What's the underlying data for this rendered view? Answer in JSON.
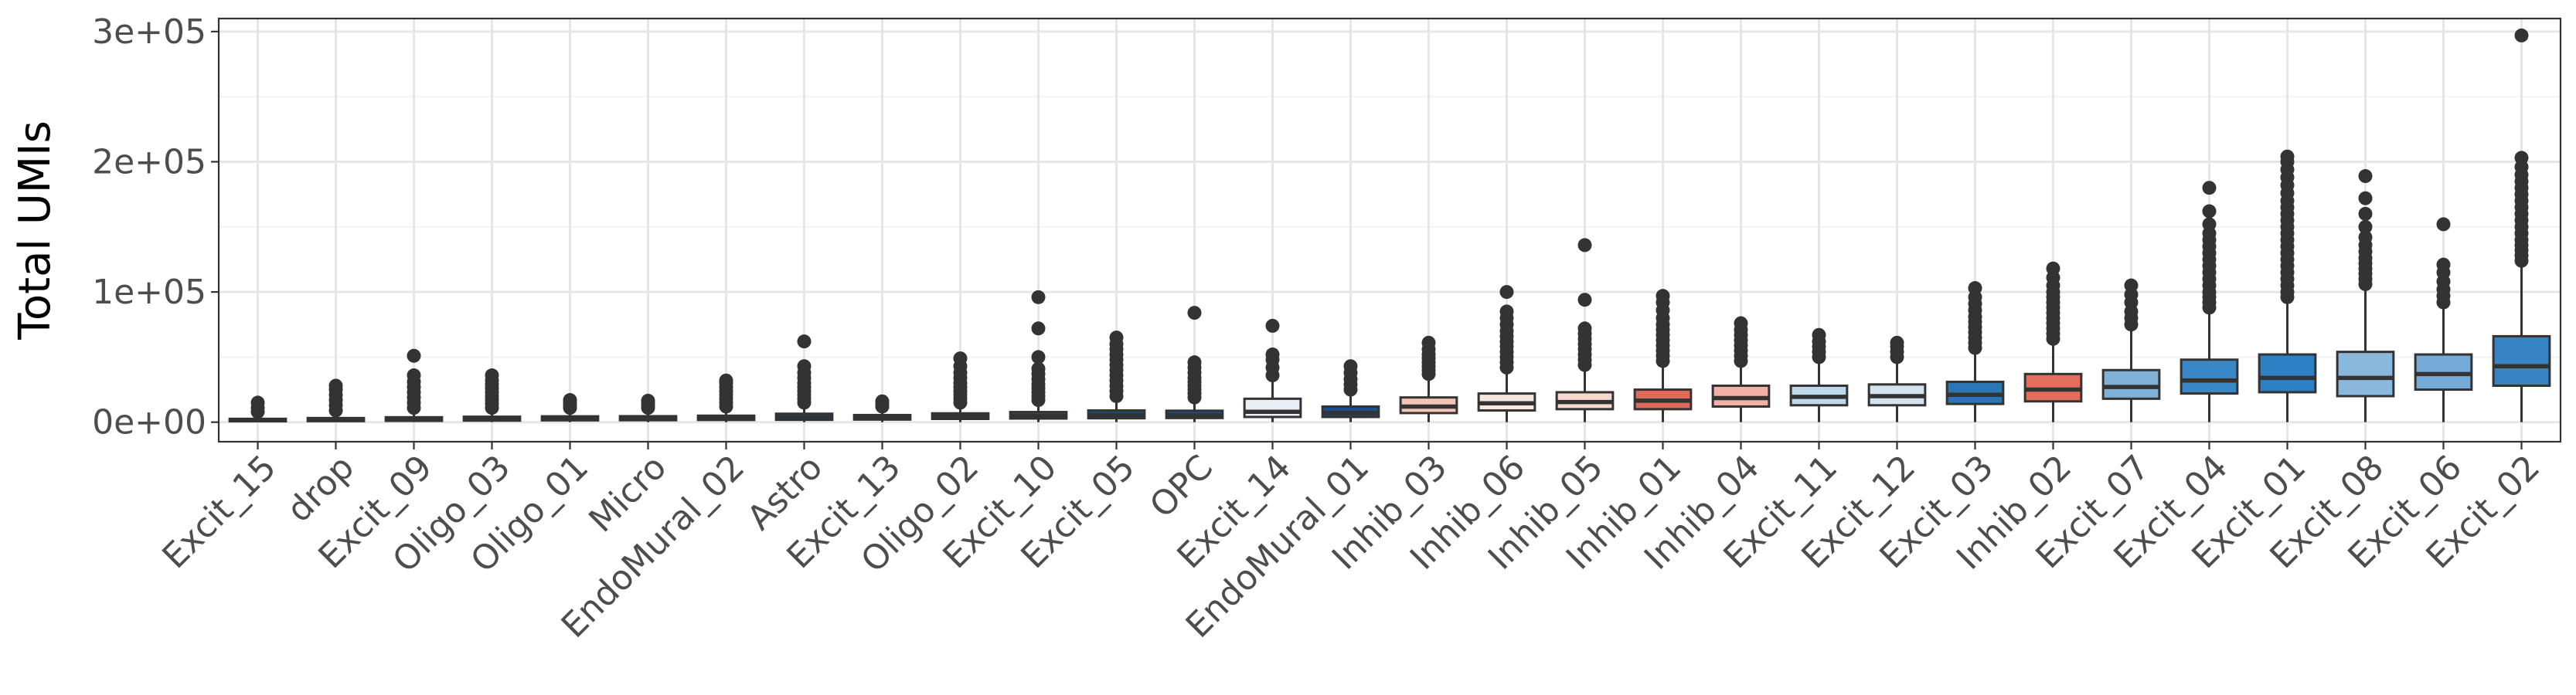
{
  "chart_data": {
    "type": "box",
    "title": "",
    "xlabel": "",
    "ylabel": "Total UMIs",
    "ylim": [
      -15000,
      310000
    ],
    "yticks": [
      0,
      100000,
      200000,
      300000
    ],
    "ytick_labels": [
      "0e+00",
      "1e+05",
      "2e+05",
      "3e+05"
    ],
    "grid": true,
    "legend": "none",
    "categories": [
      "Excit_15",
      "drop",
      "Excit_09",
      "Oligo_03",
      "Oligo_01",
      "Micro",
      "EndoMural_02",
      "Astro",
      "Excit_13",
      "Oligo_02",
      "Excit_10",
      "Excit_05",
      "OPC",
      "Excit_14",
      "EndoMural_01",
      "Inhib_03",
      "Inhib_06",
      "Inhib_05",
      "Inhib_01",
      "Inhib_04",
      "Excit_11",
      "Excit_12",
      "Excit_03",
      "Inhib_02",
      "Excit_07",
      "Excit_04",
      "Excit_01",
      "Excit_08",
      "Excit_06",
      "Excit_02"
    ],
    "boxes": [
      {
        "category": "Excit_15",
        "min": 0,
        "q1": 700,
        "median": 1500,
        "q3": 2600,
        "max": 6000,
        "fill": "#1a4f8b",
        "outliers": [
          8000,
          11000,
          15000
        ]
      },
      {
        "category": "drop",
        "min": 0,
        "q1": 800,
        "median": 1800,
        "q3": 3200,
        "max": 7000,
        "fill": "#1a4f8b",
        "outliers": [
          9000,
          13000,
          17000,
          21000,
          25000,
          28000
        ]
      },
      {
        "category": "Excit_09",
        "min": 0,
        "q1": 1000,
        "median": 2200,
        "q3": 3800,
        "max": 8500,
        "fill": "#1a4f8b",
        "outliers": [
          11000,
          15000,
          19000,
          23000,
          27000,
          31000,
          36000,
          51000
        ]
      },
      {
        "category": "Oligo_03",
        "min": 0,
        "q1": 1200,
        "median": 2500,
        "q3": 4200,
        "max": 8500,
        "fill": "#1a4f8b",
        "outliers": [
          11000,
          14000,
          17000,
          20000,
          23000,
          26000,
          29000,
          32000,
          36000
        ]
      },
      {
        "category": "Oligo_01",
        "min": 0,
        "q1": 1400,
        "median": 2700,
        "q3": 4500,
        "max": 9000,
        "fill": "#1a4f8b",
        "outliers": [
          11000,
          13000,
          15000,
          17000
        ]
      },
      {
        "category": "Micro",
        "min": 0,
        "q1": 1500,
        "median": 2800,
        "q3": 4600,
        "max": 9000,
        "fill": "#1a4f8b",
        "outliers": [
          11000,
          13000,
          15000,
          16500
        ]
      },
      {
        "category": "EndoMural_02",
        "min": 0,
        "q1": 1700,
        "median": 3000,
        "q3": 5000,
        "max": 10000,
        "fill": "#1a4f8b",
        "outliers": [
          12000,
          15000,
          18000,
          21000,
          24000,
          27000,
          30000,
          32000
        ]
      },
      {
        "category": "Astro",
        "min": 0,
        "q1": 1800,
        "median": 3600,
        "q3": 6500,
        "max": 13000,
        "fill": "#1a4f8b",
        "outliers": [
          15000,
          18000,
          21000,
          24000,
          27000,
          30000,
          34000,
          38000,
          43000,
          62000
        ]
      },
      {
        "category": "Excit_13",
        "min": 0,
        "q1": 2000,
        "median": 3500,
        "q3": 5500,
        "max": 10000,
        "fill": "#1a4f8b",
        "outliers": [
          12000,
          14000,
          16000
        ]
      },
      {
        "category": "Oligo_02",
        "min": 0,
        "q1": 2500,
        "median": 4200,
        "q3": 6800,
        "max": 13000,
        "fill": "#1a4f8b",
        "outliers": [
          15000,
          18000,
          21000,
          24000,
          27000,
          30000,
          34000,
          38000,
          43000,
          49000
        ]
      },
      {
        "category": "Excit_10",
        "min": 0,
        "q1": 2800,
        "median": 4800,
        "q3": 7800,
        "max": 15000,
        "fill": "#1a4f8b",
        "outliers": [
          17000,
          20000,
          23000,
          26000,
          29000,
          33000,
          37000,
          41000,
          50000,
          72000,
          96000
        ]
      },
      {
        "category": "Excit_05",
        "min": 0,
        "q1": 3000,
        "median": 5500,
        "q3": 9000,
        "max": 18000,
        "fill": "#1a4f8b",
        "outliers": [
          20000,
          24000,
          28000,
          32000,
          36000,
          40000,
          44000,
          48000,
          52000,
          56000,
          60000,
          65000
        ]
      },
      {
        "category": "OPC",
        "min": 0,
        "q1": 3200,
        "median": 5300,
        "q3": 8800,
        "max": 17000,
        "fill": "#1a4f8b",
        "outliers": [
          19000,
          22000,
          25000,
          28000,
          31000,
          34000,
          38000,
          42000,
          46000,
          84000
        ]
      },
      {
        "category": "Excit_14",
        "min": 0,
        "q1": 4000,
        "median": 8000,
        "q3": 18000,
        "max": 34000,
        "fill": "#e8eff6",
        "outliers": [
          36000,
          42000,
          48000,
          52000,
          74000
        ]
      },
      {
        "category": "EndoMural_01",
        "min": 0,
        "q1": 4000,
        "median": 7000,
        "q3": 12000,
        "max": 22000,
        "fill": "#1a4f8b",
        "outliers": [
          25000,
          29000,
          33000,
          38000,
          43000
        ]
      },
      {
        "category": "Inhib_03",
        "min": 0,
        "q1": 7000,
        "median": 12000,
        "q3": 19000,
        "max": 35000,
        "fill": "#f3c3b5",
        "outliers": [
          37000,
          40000,
          43000,
          46000,
          49000,
          52000,
          56000,
          61000
        ]
      },
      {
        "category": "Inhib_06",
        "min": 0,
        "q1": 9000,
        "median": 14500,
        "q3": 22000,
        "max": 40000,
        "fill": "#f8e6e0",
        "outliers": [
          42000,
          46000,
          50000,
          54000,
          58000,
          62000,
          66000,
          70000,
          75000,
          80000,
          85000,
          100000
        ]
      },
      {
        "category": "Inhib_05",
        "min": 0,
        "q1": 10000,
        "median": 15500,
        "q3": 23000,
        "max": 42000,
        "fill": "#f7d8cd",
        "outliers": [
          44000,
          48000,
          52000,
          56000,
          60000,
          64000,
          68000,
          72000,
          94000,
          136000
        ]
      },
      {
        "category": "Inhib_01",
        "min": 0,
        "q1": 10000,
        "median": 16500,
        "q3": 25000,
        "max": 45000,
        "fill": "#e06a58",
        "outliers": [
          47000,
          51000,
          55000,
          59000,
          63000,
          67000,
          71000,
          75000,
          80000,
          86000,
          92000,
          97000
        ]
      },
      {
        "category": "Inhib_04",
        "min": 0,
        "q1": 12000,
        "median": 18500,
        "q3": 28000,
        "max": 45000,
        "fill": "#f1b1a5",
        "outliers": [
          47000,
          51000,
          55000,
          59000,
          63000,
          67000,
          71000,
          76000
        ]
      },
      {
        "category": "Excit_11",
        "min": 0,
        "q1": 13000,
        "median": 19500,
        "q3": 28000,
        "max": 48000,
        "fill": "#bfd8ea",
        "outliers": [
          50000,
          54000,
          58000,
          62000,
          67000
        ]
      },
      {
        "category": "Excit_12",
        "min": 0,
        "q1": 13000,
        "median": 20000,
        "q3": 29000,
        "max": 48000,
        "fill": "#d2e2ef",
        "outliers": [
          50000,
          54000,
          58000,
          61000
        ]
      },
      {
        "category": "Excit_03",
        "min": 0,
        "q1": 14000,
        "median": 21000,
        "q3": 31000,
        "max": 55000,
        "fill": "#2b76b7",
        "outliers": [
          57000,
          61000,
          65000,
          69000,
          73000,
          77000,
          81000,
          86000,
          91000,
          96000,
          103000
        ]
      },
      {
        "category": "Inhib_02",
        "min": 0,
        "q1": 16000,
        "median": 25000,
        "q3": 37000,
        "max": 62000,
        "fill": "#e26e5d",
        "outliers": [
          64000,
          68000,
          72000,
          76000,
          80000,
          84000,
          88000,
          92000,
          96000,
          100000,
          105000,
          111000,
          118000
        ]
      },
      {
        "category": "Excit_07",
        "min": 0,
        "q1": 18000,
        "median": 27000,
        "q3": 40000,
        "max": 70000,
        "fill": "#7fb1d8",
        "outliers": [
          75000,
          80000,
          85000,
          92000,
          98000,
          105000
        ]
      },
      {
        "category": "Excit_04",
        "min": 0,
        "q1": 22000,
        "median": 32000,
        "q3": 48000,
        "max": 85000,
        "fill": "#3987c6",
        "outliers": [
          88000,
          92000,
          96000,
          100000,
          105000,
          110000,
          115000,
          120000,
          125000,
          130000,
          135000,
          140000,
          145000,
          152000,
          162000,
          180000
        ]
      },
      {
        "category": "Excit_01",
        "min": 0,
        "q1": 23000,
        "median": 34000,
        "q3": 52000,
        "max": 93000,
        "fill": "#2d80c3",
        "outliers": [
          96000,
          100000,
          105000,
          110000,
          115000,
          120000,
          125000,
          130000,
          135000,
          140000,
          145000,
          150000,
          155000,
          160000,
          165000,
          170000,
          176000,
          182000,
          188000,
          194000,
          200000,
          204000
        ]
      },
      {
        "category": "Excit_08",
        "min": 0,
        "q1": 20000,
        "median": 34000,
        "q3": 54000,
        "max": 103000,
        "fill": "#8ab8dc",
        "outliers": [
          106000,
          110000,
          114000,
          118000,
          122000,
          126000,
          131000,
          136000,
          142000,
          150000,
          160000,
          172000,
          189000
        ]
      },
      {
        "category": "Excit_06",
        "min": 0,
        "q1": 25000,
        "median": 37000,
        "q3": 52000,
        "max": 88000,
        "fill": "#74aad5",
        "outliers": [
          92000,
          97000,
          102000,
          108000,
          115000,
          121000,
          152000
        ]
      },
      {
        "category": "Excit_02",
        "min": 0,
        "q1": 28000,
        "median": 43000,
        "q3": 66000,
        "max": 120000,
        "fill": "#3684c4",
        "outliers": [
          124000,
          128000,
          132000,
          136000,
          140000,
          145000,
          150000,
          155000,
          160000,
          165000,
          170000,
          175000,
          180000,
          185000,
          190000,
          196000,
          203000,
          297000
        ]
      }
    ]
  }
}
